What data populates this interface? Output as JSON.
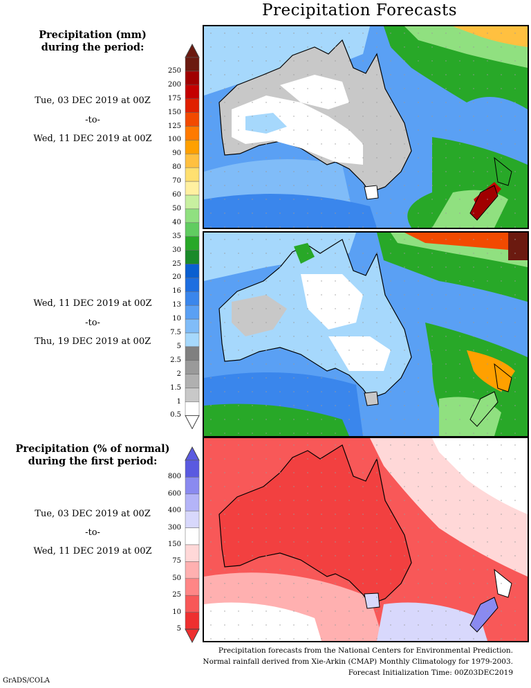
{
  "title": "Precipitation Forecasts",
  "precip_label": [
    "Precipitation (mm)",
    "during the period:"
  ],
  "period1": {
    "start": "Tue, 03 DEC 2019 at 00Z",
    "to": "-to-",
    "end": "Wed, 11 DEC 2019 at 00Z"
  },
  "period2": {
    "start": "Wed, 11 DEC 2019 at 00Z",
    "to": "-to-",
    "end": "Thu, 19 DEC 2019 at 00Z"
  },
  "pct_label": [
    "Precipitation (% of normal)",
    "during the first period:"
  ],
  "period3": {
    "start": "Tue, 03 DEC 2019 at 00Z",
    "to": "-to-",
    "end": "Wed, 11 DEC 2019 at 00Z"
  },
  "mm_scale": {
    "labels": [
      "250",
      "200",
      "175",
      "150",
      "125",
      "100",
      "90",
      "80",
      "70",
      "60",
      "50",
      "40",
      "35",
      "30",
      "25",
      "20",
      "16",
      "13",
      "10",
      "7.5",
      "5",
      "2.5",
      "2",
      "1.5",
      "1",
      "0.5"
    ],
    "colors": [
      "#6b1a10",
      "#a00000",
      "#c40000",
      "#e02000",
      "#f24a00",
      "#ff7a00",
      "#ffa000",
      "#ffc040",
      "#ffe070",
      "#fff0a0",
      "#c8f0a0",
      "#90e080",
      "#60cc60",
      "#28a828",
      "#1a8a2a",
      "#0a5fd0",
      "#1e6ee0",
      "#3a86ec",
      "#5aa0f4",
      "#80bcf8",
      "#a6d8fc",
      "#808080",
      "#9a9a9a",
      "#b0b0b0",
      "#c8c8c8",
      "#ffffff"
    ]
  },
  "pct_scale": {
    "labels": [
      "800",
      "600",
      "400",
      "300",
      "150",
      "75",
      "50",
      "25",
      "10",
      "5"
    ],
    "colors": [
      "#5a5ae0",
      "#8a8af0",
      "#b4b4f8",
      "#d8d8fc",
      "#ffffff",
      "#ffd8d8",
      "#ffb0b0",
      "#ff8686",
      "#f85858",
      "#ee3030"
    ]
  },
  "footer": [
    "Precipitation forecasts from the National Centers for Environmental Prediction.",
    "Normal rainfall derived from Xie-Arkin (CMAP) Monthly Climatology for 1979-2003.",
    "Forecast Initialization Time: 00Z03DEC2019"
  ],
  "credit": "GrADS/COLA"
}
